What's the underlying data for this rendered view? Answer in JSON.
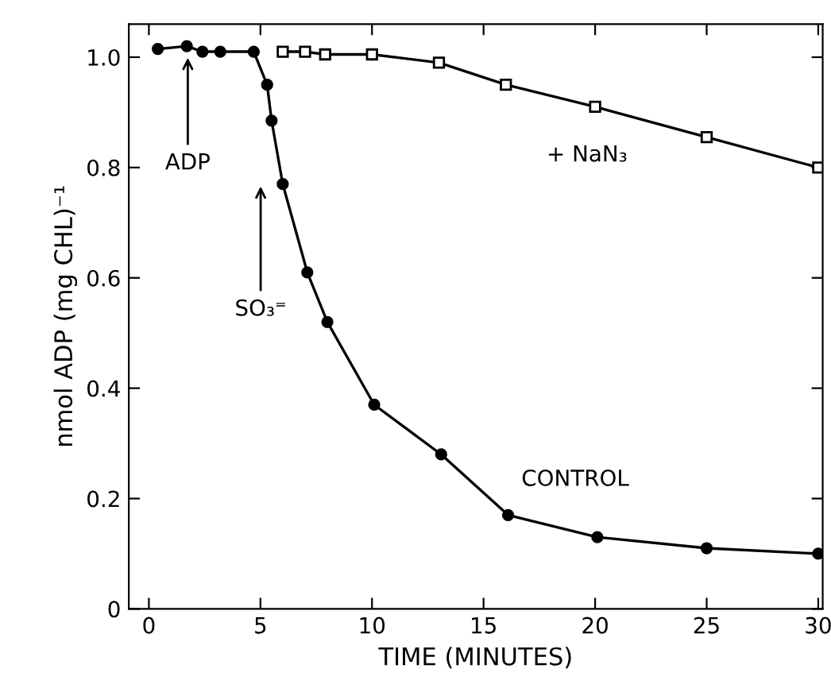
{
  "chart_data": {
    "type": "line",
    "xlabel": "TIME (MINUTES)",
    "ylabel": "nmol ADP (mg CHL)⁻¹",
    "xlim": [
      -0.9,
      30.2
    ],
    "xticks": [
      0,
      5,
      10,
      15,
      20,
      25,
      30
    ],
    "ylim": [
      0,
      1.06
    ],
    "yticks": [
      0,
      {
        "value": 0.2,
        "label": "0.2"
      },
      {
        "value": 0.4,
        "label": "0.4"
      },
      {
        "value": 0.6,
        "label": "0.6"
      },
      {
        "value": 0.8,
        "label": "0.8"
      },
      {
        "value": 1,
        "label": "1.0"
      }
    ],
    "grid": false,
    "legend": false,
    "series": [
      {
        "name": "CONTROL",
        "color": "#000000",
        "marker": "circle",
        "x": [
          0.4,
          1.7,
          2.4,
          3.2,
          4.7,
          5.3,
          5.5,
          6.0,
          7.1,
          8.0,
          10.1,
          13.1,
          16.1,
          20.1,
          25.0,
          30.0
        ],
        "values": [
          1.015,
          1.02,
          1.01,
          1.01,
          1.01,
          0.95,
          0.885,
          0.77,
          0.61,
          0.52,
          0.37,
          0.28,
          0.17,
          0.13,
          0.11,
          0.1
        ]
      },
      {
        "name": "+ NaN₃",
        "color": "#000000",
        "marker": "square",
        "x": [
          6.0,
          7.0,
          7.9,
          10.0,
          13.0,
          16.0,
          20.0,
          25.0,
          30.0
        ],
        "values": [
          1.01,
          1.01,
          1.005,
          1.005,
          0.99,
          0.95,
          0.91,
          0.855,
          0.8
        ]
      }
    ],
    "annotations": [
      "ADP",
      "SO₃⁼"
    ]
  }
}
